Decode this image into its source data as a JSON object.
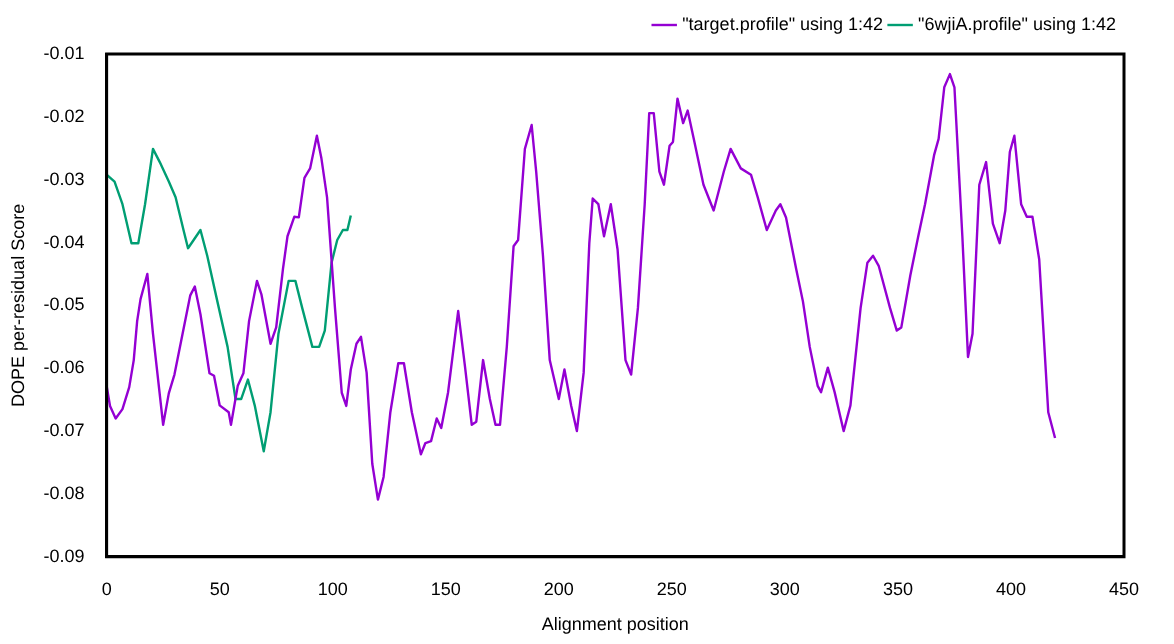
{
  "chart_data": {
    "type": "line",
    "xlabel": "Alignment position",
    "ylabel": "DOPE per-residual Score",
    "xlim": [
      0,
      450
    ],
    "xticks": [
      0,
      50,
      100,
      150,
      200,
      250,
      300,
      350,
      400,
      450
    ],
    "ylim": [
      -0.09,
      -0.01
    ],
    "yticks": [
      -0.09,
      -0.08,
      -0.07,
      -0.06,
      -0.05,
      -0.04,
      -0.03,
      -0.02,
      -0.01
    ],
    "grid": false,
    "legend": "top right",
    "marker": "none",
    "line_style": "solid",
    "series": [
      {
        "name": "\"target.profile\" using 1:42",
        "color": "#9400d3",
        "x": [
          0,
          1.5,
          4,
          7,
          10,
          12,
          13.5,
          15,
          18,
          20.5,
          25,
          27.5,
          30,
          33,
          37,
          39,
          41.5,
          45.5,
          47.5,
          50,
          54,
          55,
          58,
          60.5,
          63,
          66.5,
          68.5,
          72.5,
          75,
          78,
          80,
          83,
          85,
          87.5,
          90,
          93,
          95,
          97.5,
          101,
          104,
          106,
          108,
          110.5,
          112.5,
          115,
          117.5,
          120,
          122.5,
          125.5,
          129,
          131.5,
          135,
          139,
          141,
          143.5,
          146,
          148,
          151,
          155.5,
          158.5,
          161.5,
          163.5,
          166.5,
          169.5,
          172,
          174,
          177,
          180,
          182,
          185,
          188,
          190,
          193,
          196,
          200,
          202.5,
          205.5,
          208,
          211,
          213.5,
          215,
          217.5,
          220,
          223,
          226,
          229.5,
          232,
          235,
          238,
          240,
          242,
          244.5,
          246.5,
          249,
          250.5,
          252.5,
          255,
          257,
          260,
          264,
          268.5,
          273,
          276,
          280.5,
          285,
          288,
          292,
          296,
          298,
          300.5,
          305,
          308,
          311,
          314.5,
          316,
          319,
          322,
          326,
          329,
          333.5,
          336.5,
          339,
          341.5,
          346.5,
          349.5,
          351.5,
          355.5,
          359,
          362,
          366,
          368,
          370.5,
          373,
          375,
          378.5,
          381,
          383,
          386,
          389,
          392,
          395,
          397.5,
          399.5,
          401.5,
          404.5,
          407,
          409.5,
          412.5,
          416.5,
          419.5
        ],
        "values": [
          -0.0628,
          -0.066,
          -0.068,
          -0.0665,
          -0.063,
          -0.0587,
          -0.0525,
          -0.049,
          -0.045,
          -0.0545,
          -0.069,
          -0.064,
          -0.061,
          -0.0556,
          -0.0484,
          -0.047,
          -0.0514,
          -0.0608,
          -0.0612,
          -0.0659,
          -0.067,
          -0.069,
          -0.0628,
          -0.0608,
          -0.0525,
          -0.0461,
          -0.0483,
          -0.0561,
          -0.0535,
          -0.0442,
          -0.039,
          -0.0359,
          -0.036,
          -0.0297,
          -0.0282,
          -0.023,
          -0.0266,
          -0.0328,
          -0.0504,
          -0.0639,
          -0.066,
          -0.0602,
          -0.0561,
          -0.055,
          -0.0607,
          -0.0752,
          -0.0809,
          -0.0773,
          -0.067,
          -0.0592,
          -0.0592,
          -0.067,
          -0.0737,
          -0.0719,
          -0.0716,
          -0.068,
          -0.0695,
          -0.0639,
          -0.0509,
          -0.0597,
          -0.069,
          -0.0685,
          -0.0587,
          -0.0649,
          -0.069,
          -0.069,
          -0.0566,
          -0.0406,
          -0.0396,
          -0.0251,
          -0.0213,
          -0.0287,
          -0.0421,
          -0.0587,
          -0.0649,
          -0.0602,
          -0.066,
          -0.07,
          -0.0607,
          -0.0401,
          -0.033,
          -0.0339,
          -0.039,
          -0.0339,
          -0.0411,
          -0.0587,
          -0.061,
          -0.0504,
          -0.0339,
          -0.0194,
          -0.0194,
          -0.0287,
          -0.0308,
          -0.0246,
          -0.024,
          -0.0171,
          -0.021,
          -0.019,
          -0.024,
          -0.0308,
          -0.0349,
          -0.0287,
          -0.0251,
          -0.0282,
          -0.0292,
          -0.0328,
          -0.038,
          -0.0349,
          -0.0339,
          -0.036,
          -0.0442,
          -0.0494,
          -0.0566,
          -0.0628,
          -0.0638,
          -0.0599,
          -0.0638,
          -0.07,
          -0.0659,
          -0.0504,
          -0.0432,
          -0.0421,
          -0.0437,
          -0.0504,
          -0.054,
          -0.0535,
          -0.0452,
          -0.039,
          -0.0339,
          -0.0261,
          -0.0235,
          -0.0153,
          -0.0132,
          -0.0153,
          -0.039,
          -0.0582,
          -0.0545,
          -0.0308,
          -0.0272,
          -0.037,
          -0.0401,
          -0.0349,
          -0.0256,
          -0.023,
          -0.0339,
          -0.0359,
          -0.0359,
          -0.0427,
          -0.067,
          -0.0711
        ]
      },
      {
        "name": "\"6wjiA.profile\" using 1:42",
        "color": "#009e73",
        "x": [
          0,
          3.5,
          7,
          11,
          14,
          17,
          20.5,
          23.5,
          27.5,
          30.5,
          34,
          36,
          38.5,
          41.5,
          44.5,
          49,
          53.5,
          57,
          59.5,
          62.5,
          65.5,
          69.5,
          72.5,
          76,
          80.5,
          83.5,
          86.5,
          91,
          94,
          96.5,
          99.5,
          102,
          104.5,
          106.5,
          108
        ],
        "values": [
          -0.0292,
          -0.0303,
          -0.0339,
          -0.0401,
          -0.0401,
          -0.0339,
          -0.0251,
          -0.0272,
          -0.0303,
          -0.0328,
          -0.038,
          -0.0409,
          -0.0396,
          -0.038,
          -0.0421,
          -0.0494,
          -0.0566,
          -0.0649,
          -0.0649,
          -0.0618,
          -0.0659,
          -0.0732,
          -0.067,
          -0.0545,
          -0.0461,
          -0.0461,
          -0.0504,
          -0.0566,
          -0.0566,
          -0.054,
          -0.0432,
          -0.0396,
          -0.038,
          -0.038,
          -0.0357
        ]
      }
    ]
  }
}
